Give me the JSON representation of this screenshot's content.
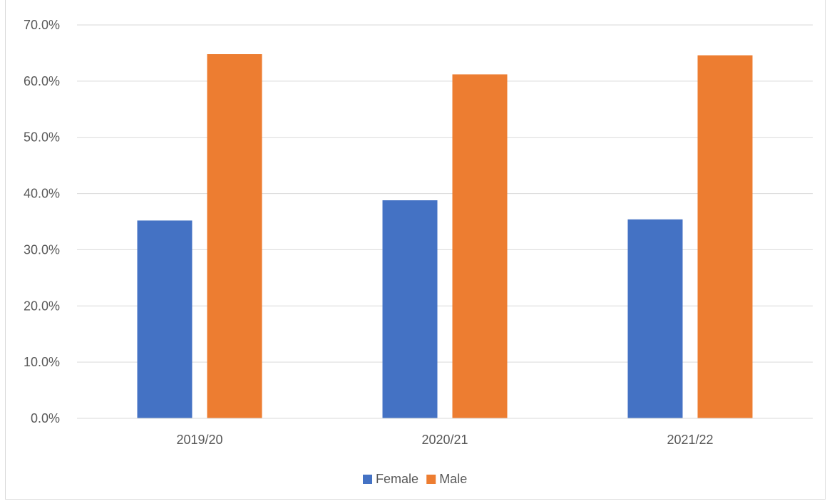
{
  "chart_data": {
    "type": "bar",
    "categories": [
      "2019/20",
      "2020/21",
      "2021/22"
    ],
    "series": [
      {
        "name": "Female",
        "values": [
          35.2,
          38.8,
          35.4
        ],
        "color": "#4472c4"
      },
      {
        "name": "Male",
        "values": [
          64.8,
          61.2,
          64.6
        ],
        "color": "#ed7d31"
      }
    ],
    "y_ticks": [
      "0.0%",
      "10.0%",
      "20.0%",
      "30.0%",
      "40.0%",
      "50.0%",
      "60.0%",
      "70.0%"
    ],
    "ylim": [
      0,
      70
    ],
    "grid": true,
    "legend_position": "bottom",
    "gridline_color": "#d9d9d9"
  }
}
